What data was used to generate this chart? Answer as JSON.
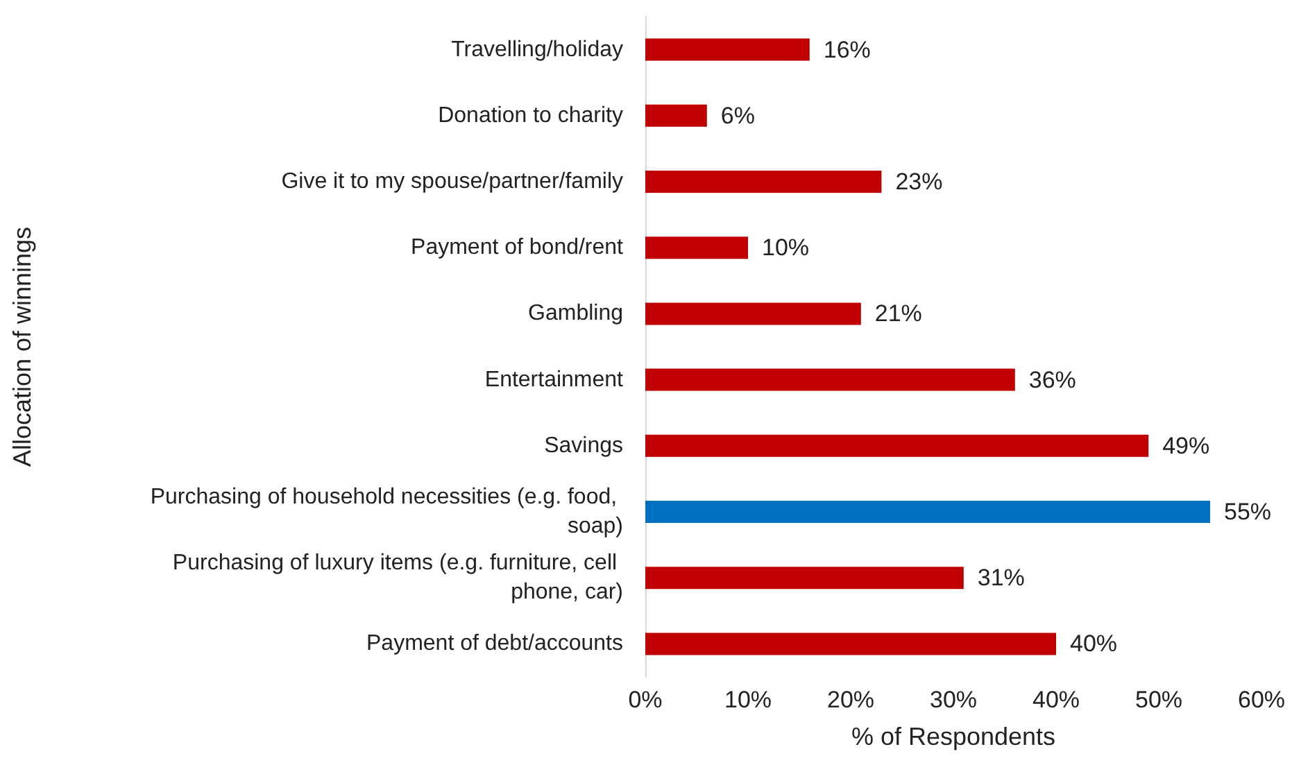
{
  "chart_data": {
    "type": "bar",
    "orientation": "horizontal",
    "xlabel": "% of Respondents",
    "ylabel": "Allocation of winnings",
    "categories": [
      "Travelling/holiday",
      "Donation to charity",
      "Give it to my spouse/partner/family",
      "Payment of bond/rent",
      "Gambling",
      "Entertainment",
      "Savings",
      "Purchasing of household necessities (e.g. food, soap)",
      "Purchasing of luxury items (e.g. furniture, cell phone, car)",
      "Payment of debt/accounts"
    ],
    "values": [
      16,
      6,
      23,
      10,
      21,
      36,
      49,
      55,
      31,
      40
    ],
    "value_labels": [
      "16%",
      "6%",
      "23%",
      "10%",
      "21%",
      "36%",
      "49%",
      "55%",
      "31%",
      "40%"
    ],
    "colors": [
      "#c00000",
      "#c00000",
      "#c00000",
      "#c00000",
      "#c00000",
      "#c00000",
      "#c00000",
      "#0070c0",
      "#c00000",
      "#c00000"
    ],
    "xlim": [
      0,
      60
    ],
    "xticks": [
      {
        "value": 0,
        "label": "0%"
      },
      {
        "value": 10,
        "label": "10%"
      },
      {
        "value": 20,
        "label": "20%"
      },
      {
        "value": 30,
        "label": "30%"
      },
      {
        "value": 40,
        "label": "40%"
      },
      {
        "value": 50,
        "label": "50%"
      },
      {
        "value": 60,
        "label": "60%"
      }
    ],
    "grid": false
  }
}
